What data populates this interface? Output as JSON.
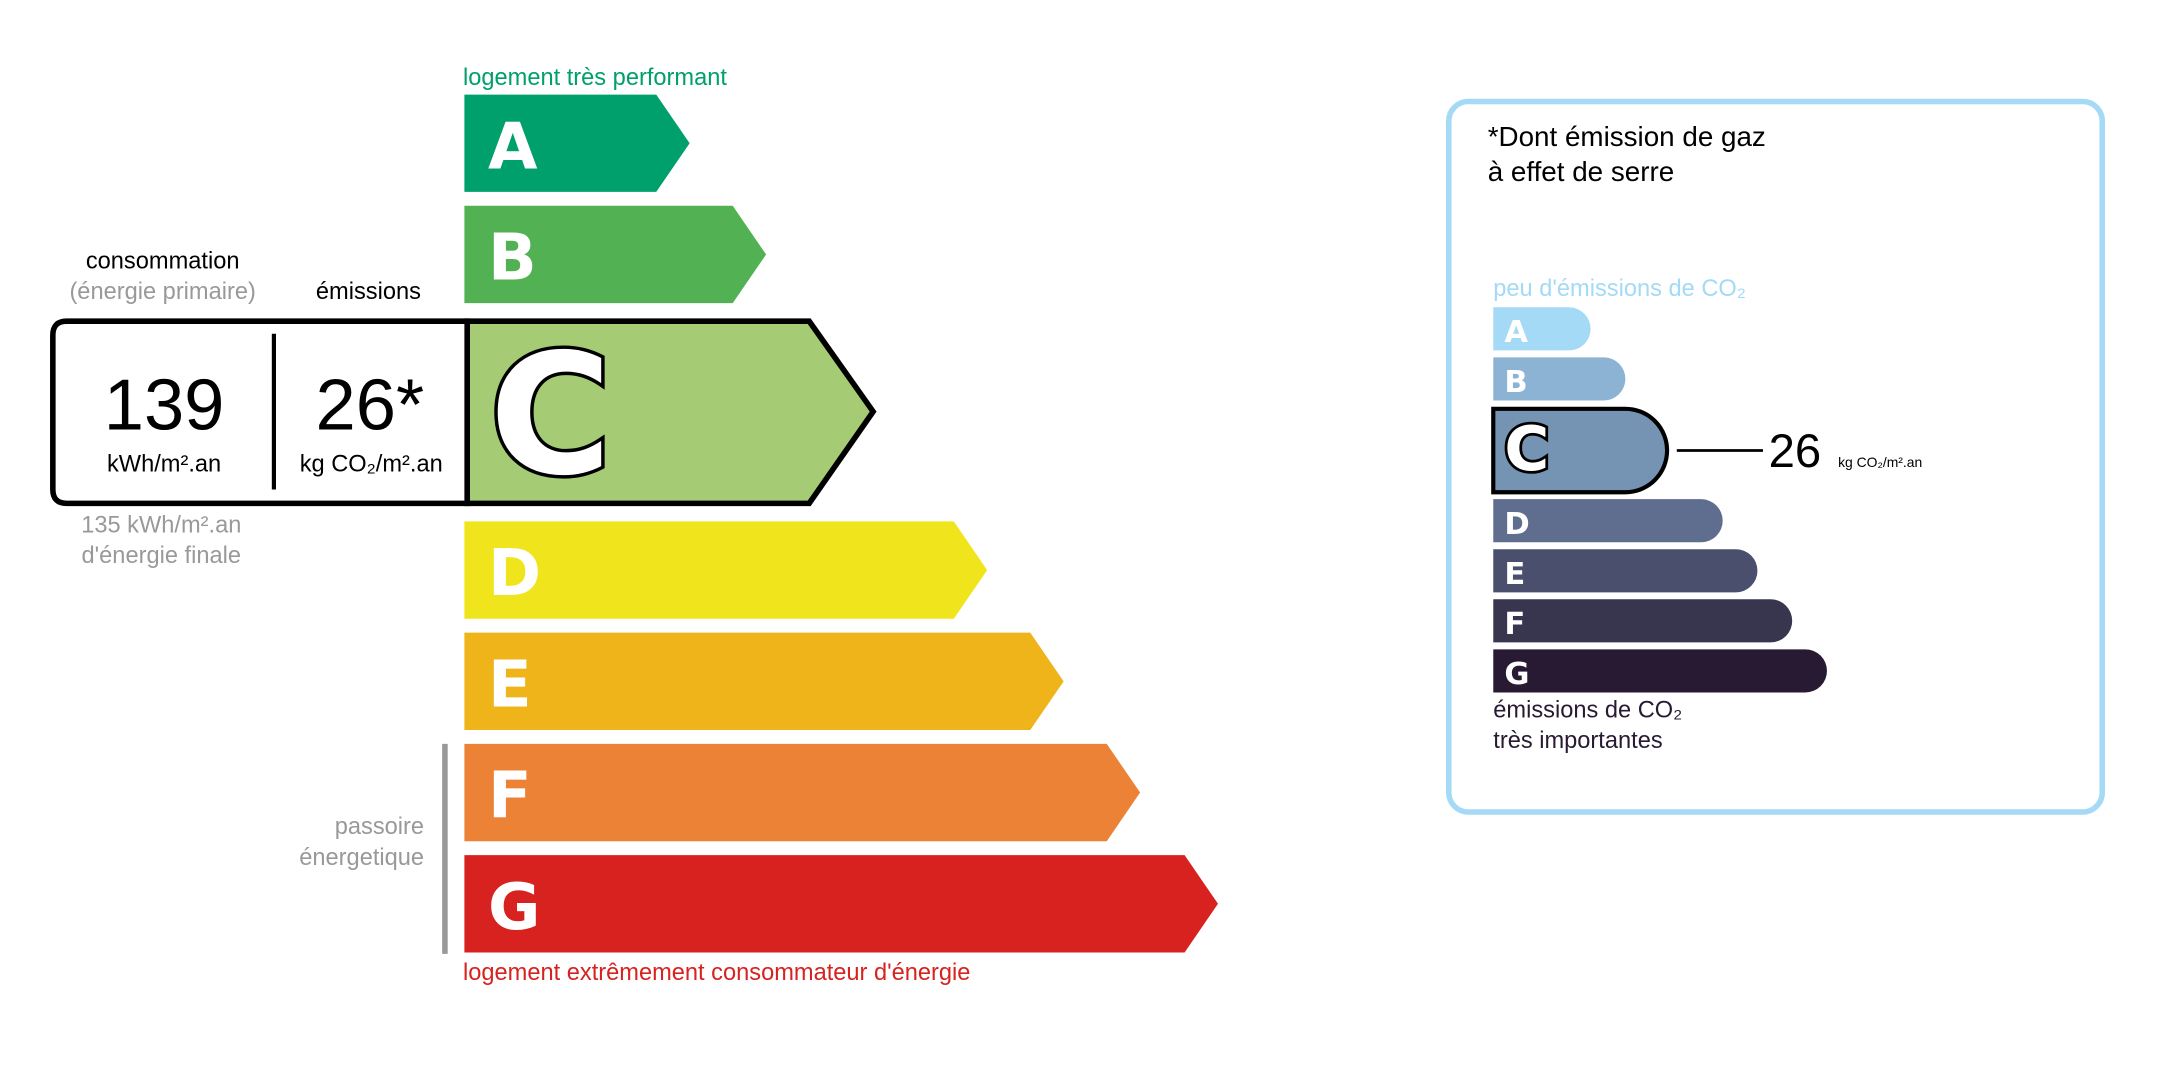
{
  "energy": {
    "top_label": "logement très performant",
    "bottom_label": "logement extrêmement consommateur d'énergie",
    "top_color": "#00a06d",
    "bottom_color": "#d7221f",
    "classes": [
      {
        "letter": "A",
        "color": "#00a06d"
      },
      {
        "letter": "B",
        "color": "#52b153"
      },
      {
        "letter": "C",
        "color": "#a5cc74"
      },
      {
        "letter": "D",
        "color": "#f0e51c"
      },
      {
        "letter": "E",
        "color": "#efb41a"
      },
      {
        "letter": "F",
        "color": "#eb8235"
      },
      {
        "letter": "G",
        "color": "#d7221f"
      }
    ],
    "current_class": "C",
    "consumption_header": "consommation",
    "consumption_sub": "(énergie primaire)",
    "emissions_header": "émissions",
    "consumption_value": "139",
    "consumption_unit": "kWh/m².an",
    "emissions_value": "26*",
    "emissions_unit": "kg CO₂/m².an",
    "final_energy_line1": "135 kWh/m².an",
    "final_energy_line2": "d'énergie finale",
    "passoire_line1": "passoire",
    "passoire_line2": "énergetique"
  },
  "ges": {
    "title_line1": "*Dont émission de gaz",
    "title_line2": "à effet de serre",
    "top_label": "peu d'émissions de CO₂",
    "bottom_label_line1": "émissions de CO₂",
    "bottom_label_line2": "très importantes",
    "border_color": "#a4daf6",
    "classes": [
      {
        "letter": "A",
        "color": "#a4daf6"
      },
      {
        "letter": "B",
        "color": "#8db3d4"
      },
      {
        "letter": "C",
        "color": "#7593b3"
      },
      {
        "letter": "D",
        "color": "#5f6d8e"
      },
      {
        "letter": "E",
        "color": "#4b4f6e"
      },
      {
        "letter": "F",
        "color": "#38354f"
      },
      {
        "letter": "G",
        "color": "#281a33"
      }
    ],
    "current_class": "C",
    "value": "26",
    "unit": "kg CO₂/m².an"
  }
}
